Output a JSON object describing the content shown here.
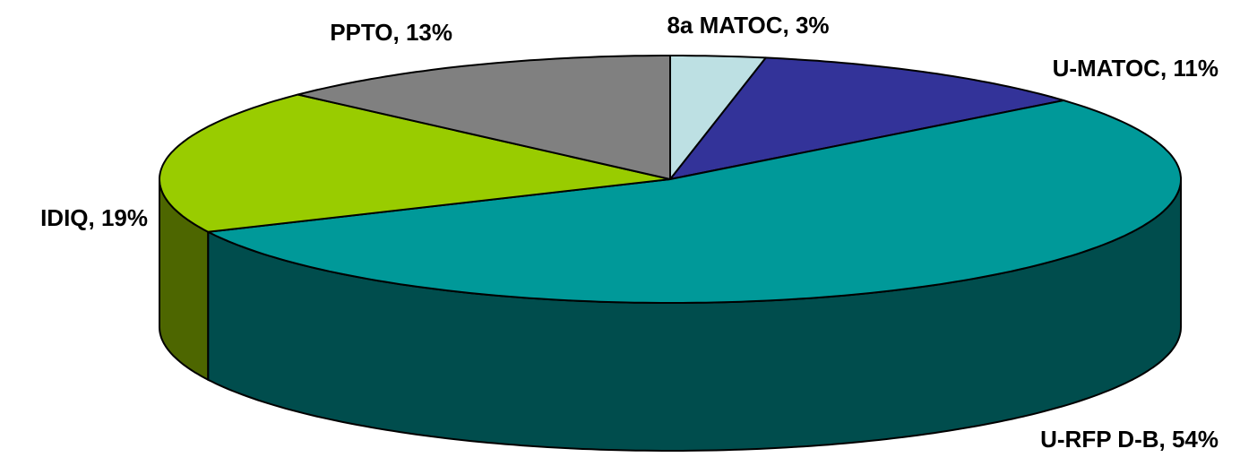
{
  "chart_data": {
    "type": "pie",
    "three_d": true,
    "values": [
      3,
      11,
      54,
      19,
      13
    ],
    "value_labels": [
      "8a MATOC, 3%",
      "U-MATOC, 11%",
      "U-RFP D-B, 54%",
      "IDIQ, 19%",
      "PPTO, 13%"
    ],
    "colors": [
      "#bde0e3",
      "#333399",
      "#009999",
      "#99cc00",
      "#808080"
    ]
  }
}
